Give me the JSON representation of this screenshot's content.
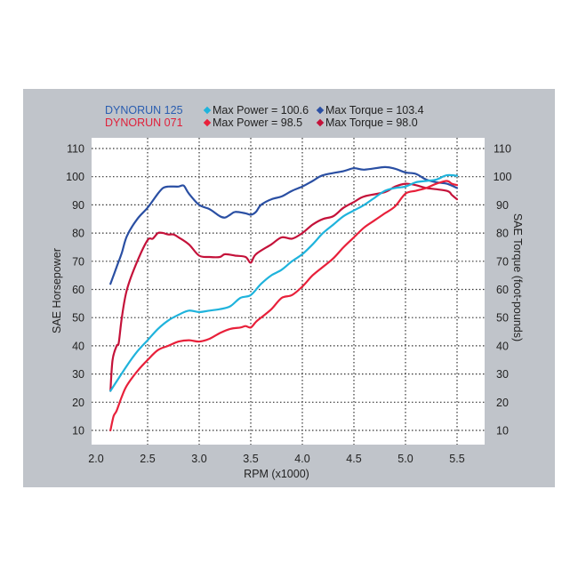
{
  "chart_data": {
    "type": "line",
    "title": "",
    "xlabel": "RPM (x1000)",
    "ylabel": "SAE Horsepower",
    "ylabel_right": "SAE Torque (foot-pounds)",
    "xlim": [
      2.0,
      5.5
    ],
    "ylim": [
      10,
      110
    ],
    "ylim_right": [
      10,
      110
    ],
    "x_ticks": [
      "2.0",
      "2.5",
      "3.0",
      "3.5",
      "4.0",
      "4.5",
      "5.0",
      "5.5"
    ],
    "y_ticks": [
      "110",
      "100",
      "90",
      "80",
      "70",
      "60",
      "50",
      "40",
      "30",
      "20",
      "10"
    ],
    "y_ticks_right": [
      "110",
      "100",
      "90",
      "80",
      "70",
      "60",
      "50",
      "40",
      "30",
      "20",
      "10"
    ],
    "grid": true,
    "grid_style": "dotted",
    "legend_position": "top",
    "legend": {
      "runs": [
        {
          "name": "DYNORUN 125",
          "color": "#2a5db0"
        },
        {
          "name": "DYNORUN 071",
          "color": "#e0203a"
        }
      ],
      "entries": [
        {
          "label": "Max Power = 100.6",
          "color": "#1fb3dc"
        },
        {
          "label": "Max Torque = 103.4",
          "color": "#2a4fa3"
        },
        {
          "label": "Max Power = 98.5",
          "color": "#e8203a"
        },
        {
          "label": "Max Torque = 98.0",
          "color": "#c4123a"
        }
      ]
    },
    "series": [
      {
        "name": "DYNORUN 125 Torque",
        "axis": "right",
        "color": "#2a4fa3",
        "max": 103.4,
        "points": [
          [
            2.14,
            62
          ],
          [
            2.2,
            68
          ],
          [
            2.25,
            73
          ],
          [
            2.3,
            79
          ],
          [
            2.4,
            85
          ],
          [
            2.5,
            89
          ],
          [
            2.6,
            94
          ],
          [
            2.65,
            96
          ],
          [
            2.7,
            96.5
          ],
          [
            2.8,
            96.5
          ],
          [
            2.85,
            96.8
          ],
          [
            2.9,
            94
          ],
          [
            3.0,
            90
          ],
          [
            3.1,
            88.5
          ],
          [
            3.2,
            86
          ],
          [
            3.25,
            85.5
          ],
          [
            3.3,
            86.5
          ],
          [
            3.35,
            87.5
          ],
          [
            3.45,
            87
          ],
          [
            3.5,
            86.5
          ],
          [
            3.55,
            87.5
          ],
          [
            3.6,
            90
          ],
          [
            3.7,
            92
          ],
          [
            3.8,
            93
          ],
          [
            3.9,
            95
          ],
          [
            4.0,
            96.5
          ],
          [
            4.1,
            98.5
          ],
          [
            4.2,
            100.5
          ],
          [
            4.4,
            102
          ],
          [
            4.5,
            103
          ],
          [
            4.6,
            102.5
          ],
          [
            4.8,
            103.4
          ],
          [
            4.9,
            102.8
          ],
          [
            5.0,
            101.5
          ],
          [
            5.1,
            101
          ],
          [
            5.2,
            99
          ],
          [
            5.3,
            98
          ],
          [
            5.4,
            97.5
          ],
          [
            5.5,
            96
          ]
        ]
      },
      {
        "name": "DYNORUN 071 Torque",
        "axis": "right",
        "color": "#c4123a",
        "max": 98.0,
        "points": [
          [
            2.14,
            24
          ],
          [
            2.16,
            35
          ],
          [
            2.2,
            40
          ],
          [
            2.22,
            41
          ],
          [
            2.25,
            50
          ],
          [
            2.3,
            60
          ],
          [
            2.4,
            70
          ],
          [
            2.5,
            77.5
          ],
          [
            2.55,
            78
          ],
          [
            2.6,
            80
          ],
          [
            2.65,
            80
          ],
          [
            2.7,
            79.5
          ],
          [
            2.75,
            79.5
          ],
          [
            2.8,
            78.5
          ],
          [
            2.9,
            76
          ],
          [
            3.0,
            72
          ],
          [
            3.1,
            71.5
          ],
          [
            3.2,
            71.5
          ],
          [
            3.25,
            72.5
          ],
          [
            3.35,
            72
          ],
          [
            3.45,
            71.5
          ],
          [
            3.5,
            69.5
          ],
          [
            3.55,
            72.5
          ],
          [
            3.7,
            76
          ],
          [
            3.8,
            78.5
          ],
          [
            3.9,
            78
          ],
          [
            4.0,
            80
          ],
          [
            4.1,
            83
          ],
          [
            4.2,
            85
          ],
          [
            4.3,
            86
          ],
          [
            4.4,
            89
          ],
          [
            4.5,
            91
          ],
          [
            4.6,
            93
          ],
          [
            4.8,
            94.5
          ],
          [
            4.9,
            96.5
          ],
          [
            5.0,
            97.5
          ],
          [
            5.1,
            97
          ],
          [
            5.2,
            96
          ],
          [
            5.4,
            95
          ],
          [
            5.45,
            93.5
          ],
          [
            5.5,
            92
          ]
        ]
      },
      {
        "name": "DYNORUN 125 Power",
        "axis": "left",
        "color": "#1fb3dc",
        "max": 100.6,
        "points": [
          [
            2.14,
            24
          ],
          [
            2.3,
            33
          ],
          [
            2.4,
            38
          ],
          [
            2.5,
            42
          ],
          [
            2.6,
            46
          ],
          [
            2.7,
            49
          ],
          [
            2.8,
            51
          ],
          [
            2.9,
            52.5
          ],
          [
            3.0,
            52
          ],
          [
            3.1,
            52.5
          ],
          [
            3.2,
            53
          ],
          [
            3.3,
            54
          ],
          [
            3.4,
            57
          ],
          [
            3.5,
            58
          ],
          [
            3.6,
            62
          ],
          [
            3.7,
            65
          ],
          [
            3.8,
            67
          ],
          [
            3.9,
            70
          ],
          [
            4.0,
            72.5
          ],
          [
            4.1,
            76
          ],
          [
            4.2,
            80
          ],
          [
            4.3,
            83
          ],
          [
            4.4,
            86
          ],
          [
            4.5,
            88
          ],
          [
            4.6,
            90
          ],
          [
            4.7,
            92.5
          ],
          [
            4.8,
            95
          ],
          [
            4.9,
            96
          ],
          [
            5.0,
            96.5
          ],
          [
            5.1,
            98
          ],
          [
            5.2,
            98.5
          ],
          [
            5.3,
            99
          ],
          [
            5.4,
            100.5
          ],
          [
            5.5,
            100.3
          ]
        ]
      },
      {
        "name": "DYNORUN 071 Power",
        "axis": "left",
        "color": "#e8203a",
        "max": 98.5,
        "points": [
          [
            2.14,
            10
          ],
          [
            2.17,
            15
          ],
          [
            2.2,
            17
          ],
          [
            2.25,
            22
          ],
          [
            2.3,
            26
          ],
          [
            2.4,
            31
          ],
          [
            2.5,
            35
          ],
          [
            2.6,
            38.5
          ],
          [
            2.7,
            40
          ],
          [
            2.8,
            41.5
          ],
          [
            2.9,
            42
          ],
          [
            3.0,
            41.5
          ],
          [
            3.1,
            42.5
          ],
          [
            3.2,
            44.5
          ],
          [
            3.3,
            46
          ],
          [
            3.4,
            46.5
          ],
          [
            3.45,
            47
          ],
          [
            3.5,
            46.5
          ],
          [
            3.55,
            48.5
          ],
          [
            3.6,
            50
          ],
          [
            3.7,
            53
          ],
          [
            3.8,
            57
          ],
          [
            3.9,
            58
          ],
          [
            4.0,
            61
          ],
          [
            4.1,
            65
          ],
          [
            4.2,
            68
          ],
          [
            4.3,
            71
          ],
          [
            4.4,
            75
          ],
          [
            4.5,
            78.5
          ],
          [
            4.6,
            82
          ],
          [
            4.7,
            84.5
          ],
          [
            4.8,
            87
          ],
          [
            4.9,
            89.5
          ],
          [
            5.0,
            94
          ],
          [
            5.1,
            95
          ],
          [
            5.2,
            96
          ],
          [
            5.3,
            97.5
          ],
          [
            5.4,
            98.5
          ],
          [
            5.45,
            97.5
          ],
          [
            5.5,
            97
          ]
        ]
      }
    ]
  },
  "colors": {
    "panel_bg": "#c0c4ca",
    "plot_bg": "#ffffff",
    "grid": "#333333"
  }
}
